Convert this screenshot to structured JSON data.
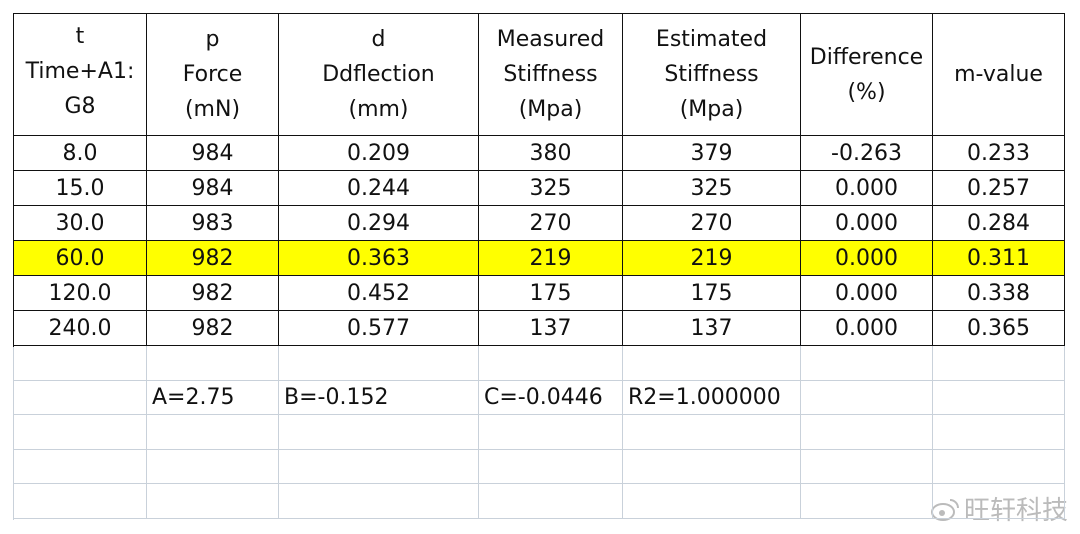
{
  "table": {
    "header": [
      [
        "t",
        "Time+A1:",
        "G8"
      ],
      [
        "p",
        "Force",
        "(mN)"
      ],
      [
        "d",
        "Ddflection",
        "(mm)"
      ],
      [
        "Measured",
        "Stiffness",
        "(Mpa)"
      ],
      [
        "Estimated",
        "Stiffness",
        "(Mpa)"
      ],
      [
        "Difference",
        "(%)"
      ],
      [
        "m-value"
      ]
    ],
    "rows": [
      [
        "8.0",
        "984",
        "0.209",
        "380",
        "379",
        "-0.263",
        "0.233"
      ],
      [
        "15.0",
        "984",
        "0.244",
        "325",
        "325",
        "0.000",
        "0.257"
      ],
      [
        "30.0",
        "983",
        "0.294",
        "270",
        "270",
        "0.000",
        "0.284"
      ],
      [
        "60.0",
        "982",
        "0.363",
        "219",
        "219",
        "0.000",
        "0.311"
      ],
      [
        "120.0",
        "982",
        "0.452",
        "175",
        "175",
        "0.000",
        "0.338"
      ],
      [
        "240.0",
        "982",
        "0.577",
        "137",
        "137",
        "0.000",
        "0.365"
      ]
    ],
    "highlighted_row": 3,
    "parameters": [
      "A=2.75",
      "B=-0.152",
      "C=-0.0446",
      "R2=1.000000"
    ]
  },
  "watermark": "旺轩科技"
}
